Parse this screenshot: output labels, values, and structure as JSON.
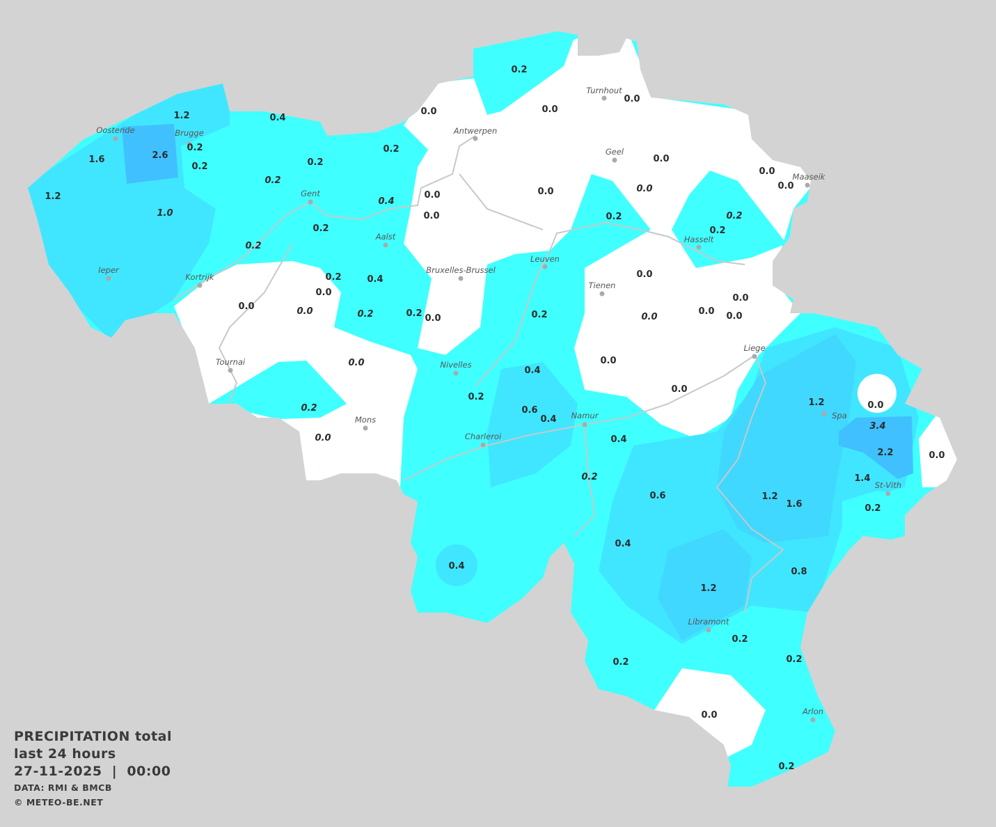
{
  "colors": {
    "background": "#d3d3d3",
    "zero": "#ffffff",
    "light": "#40ffff",
    "medium": "#40e6ff",
    "strong": "#40d8ff",
    "heavy": "#40c0ff",
    "rivers": "#c8c8c8",
    "city_dot": "#aaaaaa"
  },
  "legend": {
    "title": "PRECIPITATION total",
    "period": "last 24 hours",
    "datetime": "27-11-2025  |  00:00",
    "source": "DATA: RMI & BMCB",
    "copyright": "© METEO-BE.NET"
  },
  "cities": [
    "Turnhout",
    "Oostende",
    "Brugge",
    "Antwerpen",
    "Geel",
    "Maaseik",
    "Gent",
    "Aalst",
    "Hasselt",
    "Leuven",
    "Bruxelles-Brussel",
    "Ieper",
    "Kortrijk",
    "Tienen",
    "Liege",
    "Tournai",
    "Nivelles",
    "Spa",
    "Namur",
    "Mons",
    "Charleroi",
    "St-Vith",
    "Libramont",
    "Arlon"
  ],
  "values": [
    {
      "v": "0.2"
    },
    {
      "v": "0.0"
    },
    {
      "v": "0.0"
    },
    {
      "v": "0.0"
    },
    {
      "v": "1.2"
    },
    {
      "v": "0.4"
    },
    {
      "v": "0.2"
    },
    {
      "v": "2.6"
    },
    {
      "v": "1.6"
    },
    {
      "v": "0.2"
    },
    {
      "v": "0.2"
    },
    {
      "v": "0.2"
    },
    {
      "v": "0.2",
      "italic": true
    },
    {
      "v": "0.0"
    },
    {
      "v": "0.0"
    },
    {
      "v": "0.0"
    },
    {
      "v": "0.0"
    },
    {
      "v": "0.0",
      "italic": true
    },
    {
      "v": "1.2"
    },
    {
      "v": "0.0"
    },
    {
      "v": "0.4",
      "italic": true
    },
    {
      "v": "0.0"
    },
    {
      "v": "1.0",
      "italic": true
    },
    {
      "v": "0.2"
    },
    {
      "v": "0.2",
      "italic": true
    },
    {
      "v": "0.2"
    },
    {
      "v": "0.2"
    },
    {
      "v": "0.2",
      "italic": true
    },
    {
      "v": "0.0"
    },
    {
      "v": "0.2"
    },
    {
      "v": "0.4"
    },
    {
      "v": "0.0"
    },
    {
      "v": "0.0"
    },
    {
      "v": "0.0"
    },
    {
      "v": "0.0",
      "italic": true
    },
    {
      "v": "0.2",
      "italic": true
    },
    {
      "v": "0.2"
    },
    {
      "v": "0.0"
    },
    {
      "v": "0.2"
    },
    {
      "v": "0.0"
    },
    {
      "v": "0.0",
      "italic": true
    },
    {
      "v": "0.0"
    },
    {
      "v": "0.0"
    },
    {
      "v": "0.0",
      "italic": true
    },
    {
      "v": "0.4"
    },
    {
      "v": "0.0"
    },
    {
      "v": "0.2"
    },
    {
      "v": "1.2"
    },
    {
      "v": "0.0"
    },
    {
      "v": "0.6"
    },
    {
      "v": "0.4"
    },
    {
      "v": "0.2",
      "italic": true
    },
    {
      "v": "3.4",
      "italic": true
    },
    {
      "v": "0.0",
      "italic": true
    },
    {
      "v": "0.4"
    },
    {
      "v": "2.2"
    },
    {
      "v": "0.0"
    },
    {
      "v": "0.2",
      "italic": true
    },
    {
      "v": "1.4"
    },
    {
      "v": "0.6"
    },
    {
      "v": "1.2"
    },
    {
      "v": "1.6"
    },
    {
      "v": "0.2"
    },
    {
      "v": "0.4"
    },
    {
      "v": "0.4"
    },
    {
      "v": "0.8"
    },
    {
      "v": "1.2"
    },
    {
      "v": "0.2"
    },
    {
      "v": "0.2"
    },
    {
      "v": "0.2"
    },
    {
      "v": "0.0"
    },
    {
      "v": "0.2"
    }
  ]
}
